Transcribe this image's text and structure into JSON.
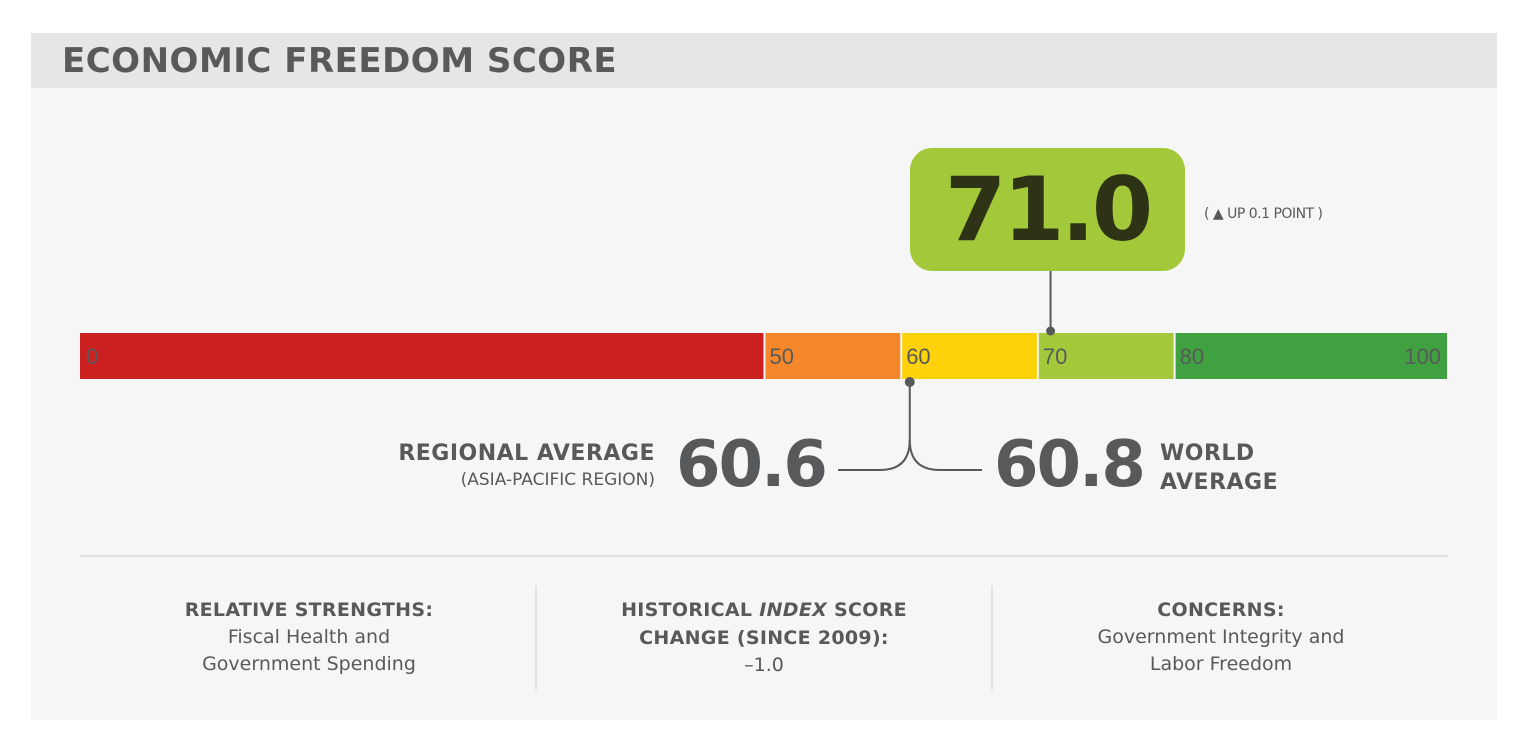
{
  "header": {
    "title": "ECONOMIC FREEDOM SCORE"
  },
  "score": {
    "value": "71.0",
    "change_note": "( ▲ UP 0.1 POINT )"
  },
  "averages": {
    "regional_title": "REGIONAL AVERAGE",
    "regional_subtitle": "(ASIA-PACIFIC REGION)",
    "regional_value": "60.6",
    "world_value": "60.8",
    "world_title_line1": "WORLD",
    "world_title_line2": "AVERAGE"
  },
  "summary": {
    "strengths_heading": "RELATIVE STRENGTHS:",
    "strengths_line1": "Fiscal Health and",
    "strengths_line2": "Government Spending",
    "historical_heading_pre": "HISTORICAL ",
    "historical_heading_italic": "INDEX",
    "historical_heading_post": " SCORE",
    "historical_heading_line2": "CHANGE (SINCE 2009):",
    "historical_value": "–1.0",
    "concerns_heading": "CONCERNS:",
    "concerns_line1": "Government Integrity and",
    "concerns_line2": "Labor Freedom"
  },
  "chart_data": {
    "type": "bar",
    "title": "ECONOMIC FREEDOM SCORE",
    "xlim": [
      0,
      100
    ],
    "segments": [
      {
        "from": 0,
        "to": 50,
        "color": "#cc1f1f"
      },
      {
        "from": 50,
        "to": 60,
        "color": "#f6872a"
      },
      {
        "from": 60,
        "to": 70,
        "color": "#fed20a"
      },
      {
        "from": 70,
        "to": 80,
        "color": "#a3c93a"
      },
      {
        "from": 80,
        "to": 100,
        "color": "#3fa13f"
      }
    ],
    "tick_labels": [
      "0",
      "50",
      "60",
      "70",
      "80",
      "100"
    ],
    "tick_values": [
      0,
      50,
      60,
      70,
      80,
      100
    ],
    "markers": [
      {
        "name": "score",
        "value": 71.0
      },
      {
        "name": "regional-average",
        "value": 60.6
      },
      {
        "name": "world-average",
        "value": 60.8
      }
    ],
    "tick_color": "#58595b"
  }
}
